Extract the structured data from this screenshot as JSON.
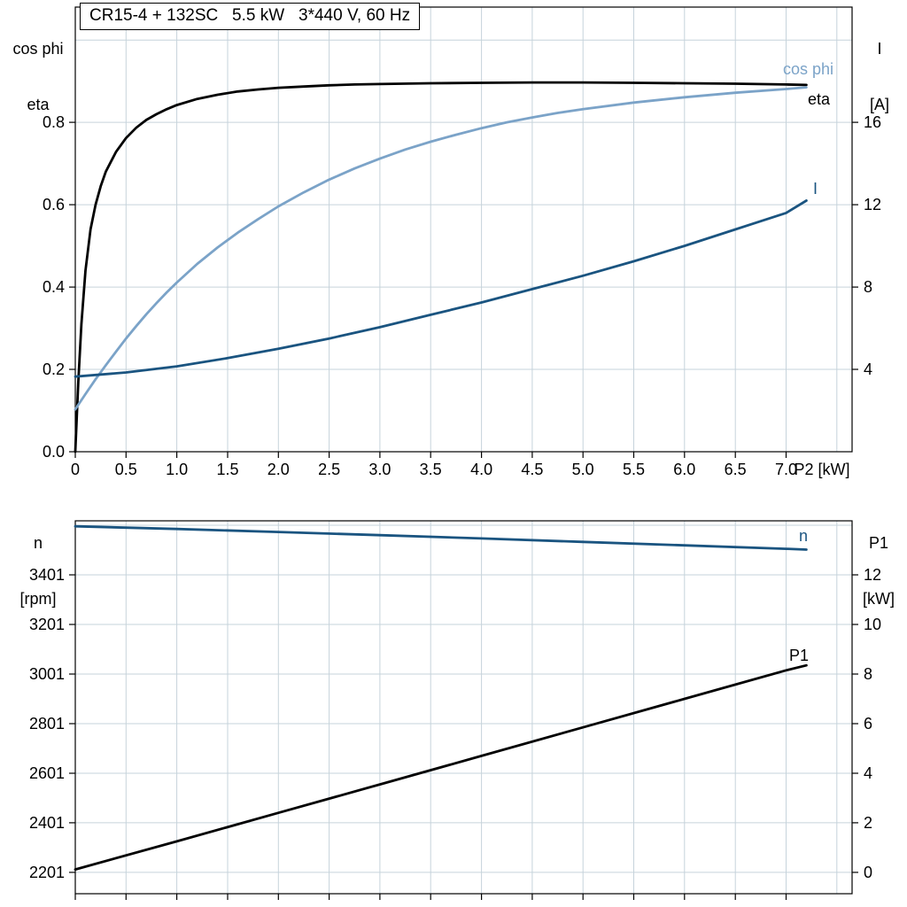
{
  "title": "CR15-4 + 132SC   5.5 kW   3*440 V, 60 Hz",
  "colors": {
    "background": "#ffffff",
    "axis": "#000000",
    "grid": "#c6d3db",
    "eta": "#000000",
    "cos_phi": "#7ba3c8",
    "current": "#1a5480",
    "speed": "#1a5480",
    "p1": "#000000"
  },
  "axis_corner_labels": {
    "top_left": [
      "cos phi",
      "eta"
    ],
    "top_right": [
      "I",
      "[A]"
    ],
    "bottom_left": [
      "n",
      "[rpm]"
    ],
    "bottom_right": [
      "P1",
      "[kW]"
    ]
  },
  "chart_data": [
    {
      "type": "line",
      "title": "CR15-4 + 132SC   5.5 kW   3*440 V, 60 Hz",
      "xlabel": "P2 [kW]",
      "ylabel_left": "cos phi / eta",
      "ylabel_right": "I [A]",
      "xlim": [
        0,
        7.65
      ],
      "ylim_left": [
        0,
        1.08
      ],
      "ylim_right": [
        0,
        21.6
      ],
      "grid": true,
      "x_ticks": [
        0,
        0.5,
        1,
        1.5,
        2,
        2.5,
        3,
        3.5,
        4,
        4.5,
        5,
        5.5,
        6,
        6.5,
        7
      ],
      "x_tick_labels": [
        "0",
        "0.5",
        "1.0",
        "1.5",
        "2.0",
        "2.5",
        "3.0",
        "3.5",
        "4.0",
        "4.5",
        "5.0",
        "5.5",
        "6.0",
        "6.5",
        "7.0"
      ],
      "x_gridlines": [
        0.5,
        1,
        1.5,
        2,
        2.5,
        3,
        3.5,
        4,
        4.5,
        5,
        5.5,
        6,
        6.5,
        7,
        7.5
      ],
      "y_ticks_left": [
        0,
        0.2,
        0.4,
        0.6,
        0.8
      ],
      "y_tick_labels_left": [
        "0.0",
        "0.2",
        "0.4",
        "0.6",
        "0.8"
      ],
      "y_gridlines_left": [
        0.2,
        0.4,
        0.6,
        0.8,
        1.0
      ],
      "y_ticks_right": [
        4,
        8,
        12,
        16
      ],
      "y_tick_labels_right": [
        "4",
        "8",
        "12",
        "16"
      ],
      "series": [
        {
          "name": "eta",
          "label": "eta",
          "axis": "left",
          "color": "#000000",
          "label_x": 912,
          "label_y": 118,
          "points": [
            [
              0,
              0
            ],
            [
              0.03,
              0.17
            ],
            [
              0.06,
              0.31
            ],
            [
              0.1,
              0.44
            ],
            [
              0.15,
              0.54
            ],
            [
              0.2,
              0.6
            ],
            [
              0.25,
              0.645
            ],
            [
              0.3,
              0.68
            ],
            [
              0.4,
              0.728
            ],
            [
              0.5,
              0.762
            ],
            [
              0.6,
              0.787
            ],
            [
              0.7,
              0.806
            ],
            [
              0.8,
              0.82
            ],
            [
              0.9,
              0.832
            ],
            [
              1.0,
              0.842
            ],
            [
              1.2,
              0.857
            ],
            [
              1.4,
              0.867
            ],
            [
              1.6,
              0.875
            ],
            [
              1.8,
              0.88
            ],
            [
              2.0,
              0.884
            ],
            [
              2.25,
              0.887
            ],
            [
              2.5,
              0.89
            ],
            [
              2.75,
              0.892
            ],
            [
              3.0,
              0.893
            ],
            [
              3.5,
              0.895
            ],
            [
              4.0,
              0.896
            ],
            [
              4.5,
              0.897
            ],
            [
              5.0,
              0.897
            ],
            [
              5.5,
              0.896
            ],
            [
              6.0,
              0.895
            ],
            [
              6.5,
              0.894
            ],
            [
              7.0,
              0.892
            ],
            [
              7.2,
              0.891
            ]
          ]
        },
        {
          "name": "cos phi",
          "label": "cos phi",
          "axis": "left",
          "color": "#7ba3c8",
          "label_x": 884,
          "label_y": 84,
          "points": [
            [
              0,
              0.103
            ],
            [
              0.1,
              0.14
            ],
            [
              0.2,
              0.176
            ],
            [
              0.3,
              0.21
            ],
            [
              0.4,
              0.243
            ],
            [
              0.5,
              0.275
            ],
            [
              0.6,
              0.305
            ],
            [
              0.7,
              0.334
            ],
            [
              0.8,
              0.361
            ],
            [
              0.9,
              0.387
            ],
            [
              1.0,
              0.411
            ],
            [
              1.2,
              0.456
            ],
            [
              1.4,
              0.496
            ],
            [
              1.6,
              0.532
            ],
            [
              1.8,
              0.565
            ],
            [
              2.0,
              0.596
            ],
            [
              2.25,
              0.63
            ],
            [
              2.5,
              0.661
            ],
            [
              2.75,
              0.688
            ],
            [
              3.0,
              0.712
            ],
            [
              3.25,
              0.734
            ],
            [
              3.5,
              0.753
            ],
            [
              3.75,
              0.77
            ],
            [
              4.0,
              0.786
            ],
            [
              4.25,
              0.8
            ],
            [
              4.5,
              0.812
            ],
            [
              4.75,
              0.823
            ],
            [
              5.0,
              0.832
            ],
            [
              5.5,
              0.848
            ],
            [
              6.0,
              0.861
            ],
            [
              6.5,
              0.872
            ],
            [
              7.0,
              0.881
            ],
            [
              7.2,
              0.885
            ]
          ]
        },
        {
          "name": "I",
          "label": "I",
          "axis": "right",
          "color": "#1a5480",
          "label_x": 918,
          "label_y": 219,
          "points": [
            [
              0,
              3.65
            ],
            [
              0.5,
              3.85
            ],
            [
              1.0,
              4.15
            ],
            [
              1.5,
              4.55
            ],
            [
              2.0,
              5.0
            ],
            [
              2.5,
              5.5
            ],
            [
              3.0,
              6.05
            ],
            [
              3.5,
              6.65
            ],
            [
              4.0,
              7.25
            ],
            [
              4.5,
              7.9
            ],
            [
              5.0,
              8.55
            ],
            [
              5.5,
              9.25
            ],
            [
              6.0,
              10.0
            ],
            [
              6.5,
              10.8
            ],
            [
              7.0,
              11.6
            ],
            [
              7.2,
              12.2
            ]
          ]
        }
      ]
    },
    {
      "type": "line",
      "title": "",
      "xlabel": "",
      "ylabel_left": "n [rpm]",
      "ylabel_right": "P1 [kW]",
      "xlim": [
        0,
        7.65
      ],
      "ylim_left": [
        2115,
        3619
      ],
      "ylim_right": [
        -0.86,
        14.18
      ],
      "grid": true,
      "x_ticks": [
        0,
        0.5,
        1,
        1.5,
        2,
        2.5,
        3,
        3.5,
        4,
        4.5,
        5,
        5.5,
        6,
        6.5,
        7
      ],
      "x_tick_labels": [],
      "x_gridlines": [
        0.5,
        1,
        1.5,
        2,
        2.5,
        3,
        3.5,
        4,
        4.5,
        5,
        5.5,
        6,
        6.5,
        7,
        7.5
      ],
      "y_ticks_left": [
        2201,
        2401,
        2601,
        2801,
        3001,
        3201,
        3401
      ],
      "y_tick_labels_left": [
        "2201",
        "2401",
        "2601",
        "2801",
        "3001",
        "3201",
        "3401"
      ],
      "y_gridlines_left": [
        2201,
        2401,
        2601,
        2801,
        3001,
        3201,
        3401,
        3601
      ],
      "y_ticks_right": [
        0,
        2,
        4,
        6,
        8,
        10,
        12
      ],
      "y_tick_labels_right": [
        "0",
        "2",
        "4",
        "6",
        "8",
        "10",
        "12"
      ],
      "series": [
        {
          "name": "n",
          "label": "n",
          "axis": "left",
          "color": "#1a5480",
          "label_x": 902,
          "label_y": 611,
          "points": [
            [
              0,
              3597
            ],
            [
              1,
              3586
            ],
            [
              2,
              3574
            ],
            [
              3,
              3561
            ],
            [
              4,
              3548
            ],
            [
              5,
              3534
            ],
            [
              6,
              3520
            ],
            [
              7,
              3506
            ],
            [
              7.2,
              3503
            ]
          ]
        },
        {
          "name": "P1",
          "label": "P1",
          "axis": "right",
          "color": "#000000",
          "label_x": 891,
          "label_y": 746,
          "points": [
            [
              0,
              0.12
            ],
            [
              1,
              1.25
            ],
            [
              2,
              2.4
            ],
            [
              3,
              3.55
            ],
            [
              4,
              4.7
            ],
            [
              5,
              5.85
            ],
            [
              6,
              7.0
            ],
            [
              7,
              8.15
            ],
            [
              7.2,
              8.35
            ]
          ]
        }
      ]
    }
  ]
}
